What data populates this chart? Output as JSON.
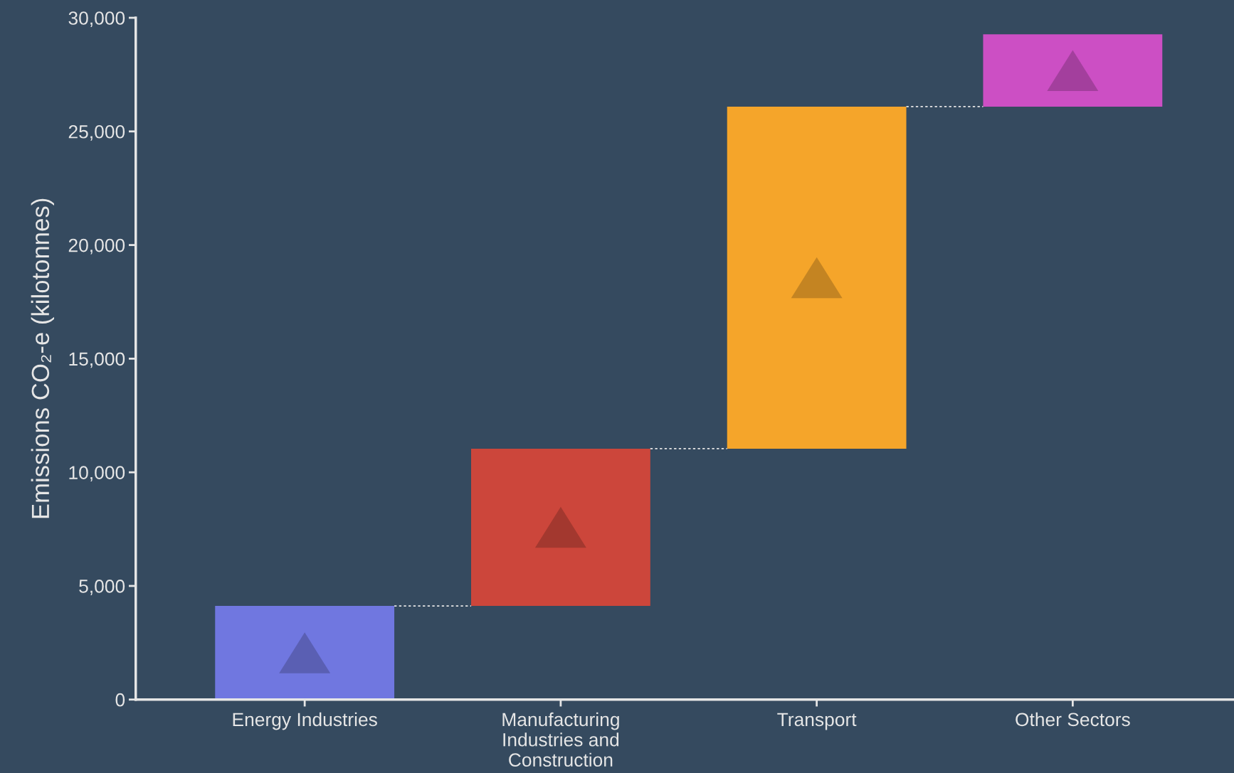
{
  "chart_data": {
    "type": "bar",
    "ylabel": "Emissions CO₂-e (kilotonnes)",
    "categories": [
      "Energy Industries",
      "Manufacturing\nIndustries and\nConstruction",
      "Transport",
      "Other Sectors"
    ],
    "values": [
      4120,
      6920,
      15050,
      3180
    ],
    "base": [
      0,
      4120,
      11040,
      26090
    ],
    "colors": [
      "#7077e0",
      "#cc463b",
      "#f5a52a",
      "#cc4fc4"
    ],
    "ylim": [
      0,
      30000
    ],
    "yticks": [
      {
        "value": 0,
        "label": "0"
      },
      {
        "value": 5000,
        "label": "5,000"
      },
      {
        "value": 10000,
        "label": "10,000"
      },
      {
        "value": 15000,
        "label": "15,000"
      },
      {
        "value": 20000,
        "label": "20,000"
      },
      {
        "value": 25000,
        "label": "25,000"
      },
      {
        "value": 30000,
        "label": "30,000"
      }
    ],
    "grid": false
  }
}
